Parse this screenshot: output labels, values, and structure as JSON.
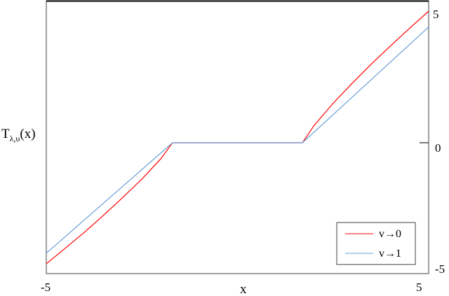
{
  "chart_data": {
    "type": "line",
    "title": "",
    "xlabel": "x",
    "ylabel": "T",
    "ylabel_sub": "λ,υ",
    "ylabel_arg": "(x)",
    "xlim": [
      -5,
      5
    ],
    "ylim": [
      -5,
      5
    ],
    "x_ticks": [
      "-5",
      "5"
    ],
    "y_ticks": [
      "5",
      "0",
      "-5"
    ],
    "grid": false,
    "legend_position": "bottom-right",
    "series": [
      {
        "name": "v→0",
        "color": "#ff0000",
        "x": [
          -5,
          -4.5,
          -4,
          -3.5,
          -3,
          -2.5,
          -2,
          -1.7,
          1.7,
          2,
          2.5,
          3,
          3.5,
          4,
          4.5,
          5
        ],
        "y": [
          -4.6,
          -4.0,
          -3.4,
          -2.75,
          -2.08,
          -1.38,
          -0.6,
          0,
          0,
          0.65,
          1.5,
          2.26,
          2.99,
          3.68,
          4.35,
          5.0
        ]
      },
      {
        "name": "v→1",
        "color": "#6a9fd8",
        "x": [
          -5,
          -1.7,
          1.7,
          5
        ],
        "y": [
          -4.2,
          0,
          0,
          4.4
        ]
      }
    ]
  }
}
